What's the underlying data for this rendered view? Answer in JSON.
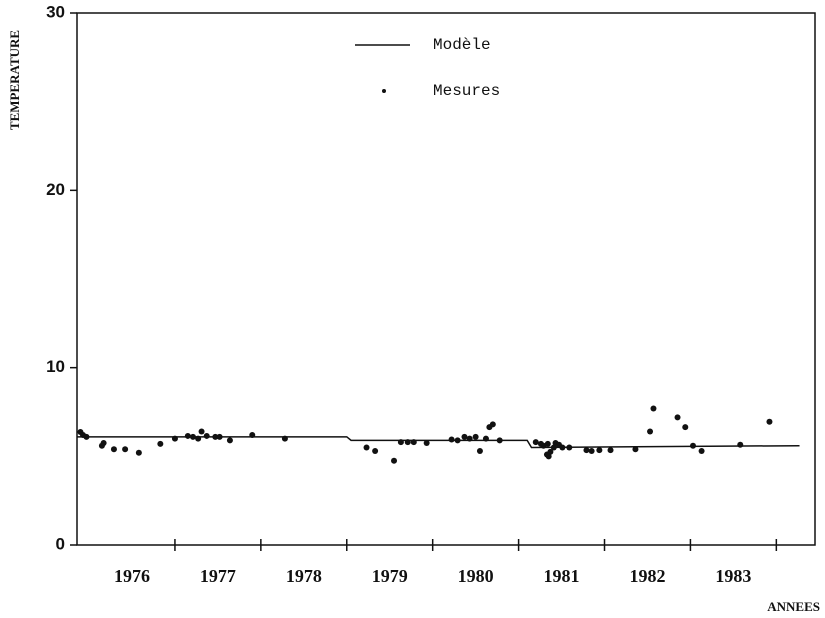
{
  "chart_data": {
    "type": "line",
    "ylabel": "TEMPERATURE",
    "xlabel": "ANNEES",
    "xlim": [
      1975.86,
      1984.45
    ],
    "ylim": [
      0,
      30
    ],
    "yticks": [
      0,
      10,
      20,
      30
    ],
    "xticks": [
      {
        "value": 1976.5,
        "label": "1976"
      },
      {
        "value": 1977.5,
        "label": "1977"
      },
      {
        "value": 1978.5,
        "label": "1978"
      },
      {
        "value": 1979.5,
        "label": "1979"
      },
      {
        "value": 1980.5,
        "label": "1980"
      },
      {
        "value": 1981.5,
        "label": "1981"
      },
      {
        "value": 1982.5,
        "label": "1982"
      },
      {
        "value": 1983.5,
        "label": "1983"
      }
    ],
    "xtick_marks": [
      1977,
      1978,
      1979,
      1980,
      1981,
      1982,
      1983,
      1984
    ],
    "series": [
      {
        "name": "Modèle",
        "type": "line",
        "color": "#111111",
        "x": [
          1975.86,
          1979.0,
          1979.05,
          1981.1,
          1981.15,
          1984.27
        ],
        "values": [
          6.1,
          6.1,
          5.9,
          5.9,
          5.5,
          5.6
        ]
      },
      {
        "name": "Mesures",
        "type": "scatter",
        "color": "#111111",
        "x": [
          1975.9,
          1975.93,
          1975.97,
          1976.15,
          1976.17,
          1976.29,
          1976.42,
          1976.58,
          1976.83,
          1977.0,
          1977.15,
          1977.21,
          1977.27,
          1977.31,
          1977.37,
          1977.47,
          1977.52,
          1977.64,
          1977.9,
          1978.28,
          1979.23,
          1979.33,
          1979.55,
          1979.63,
          1979.71,
          1979.78,
          1979.93,
          1980.22,
          1980.29,
          1980.37,
          1980.43,
          1980.5,
          1980.55,
          1980.62,
          1980.66,
          1980.7,
          1980.78,
          1981.2,
          1981.26,
          1981.29,
          1981.34,
          1981.33,
          1981.35,
          1981.37,
          1981.41,
          1981.43,
          1981.47,
          1981.51,
          1981.59,
          1981.79,
          1981.85,
          1981.94,
          1982.07,
          1982.36,
          1982.53,
          1982.57,
          1982.85,
          1982.94,
          1983.03,
          1983.13,
          1983.58,
          1983.92
        ],
        "values": [
          6.37,
          6.2,
          6.1,
          5.6,
          5.75,
          5.4,
          5.4,
          5.2,
          5.7,
          6.0,
          6.15,
          6.1,
          6.0,
          6.4,
          6.15,
          6.1,
          6.1,
          5.9,
          6.2,
          6.0,
          5.5,
          5.3,
          4.75,
          5.8,
          5.8,
          5.8,
          5.75,
          5.95,
          5.9,
          6.1,
          6.0,
          6.1,
          5.3,
          6.0,
          6.65,
          6.8,
          5.9,
          5.8,
          5.7,
          5.6,
          5.7,
          5.1,
          5.0,
          5.25,
          5.5,
          5.75,
          5.65,
          5.5,
          5.5,
          5.35,
          5.3,
          5.35,
          5.35,
          5.4,
          6.4,
          7.7,
          7.2,
          6.65,
          5.6,
          5.3,
          5.65,
          6.95
        ]
      }
    ]
  }
}
